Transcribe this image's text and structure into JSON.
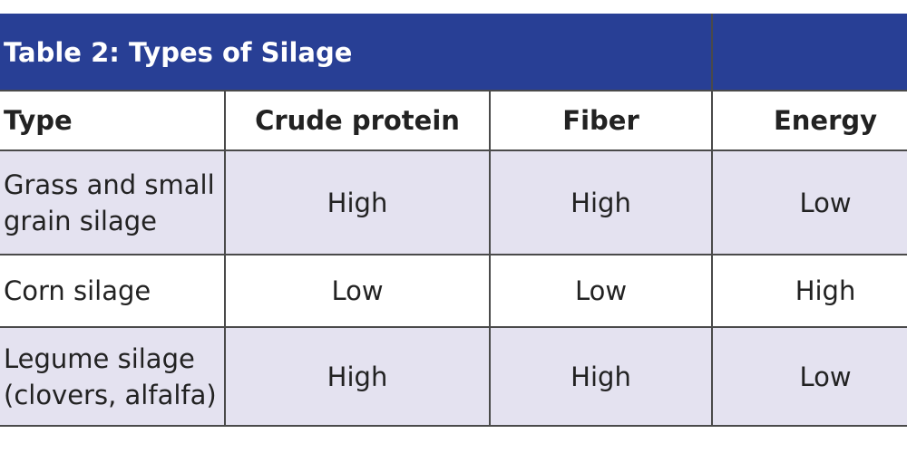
{
  "table": {
    "title": "Table 2: Types of Silage",
    "columns": [
      "Type",
      "Crude protein",
      "Fiber",
      "Energy"
    ],
    "rows": [
      [
        "Grass and small grain silage",
        "High",
        "High",
        "Low"
      ],
      [
        "Corn silage",
        "Low",
        "Low",
        "High"
      ],
      [
        "Legume silage (clovers, alfalfa)",
        "High",
        "High",
        "Low"
      ]
    ]
  }
}
